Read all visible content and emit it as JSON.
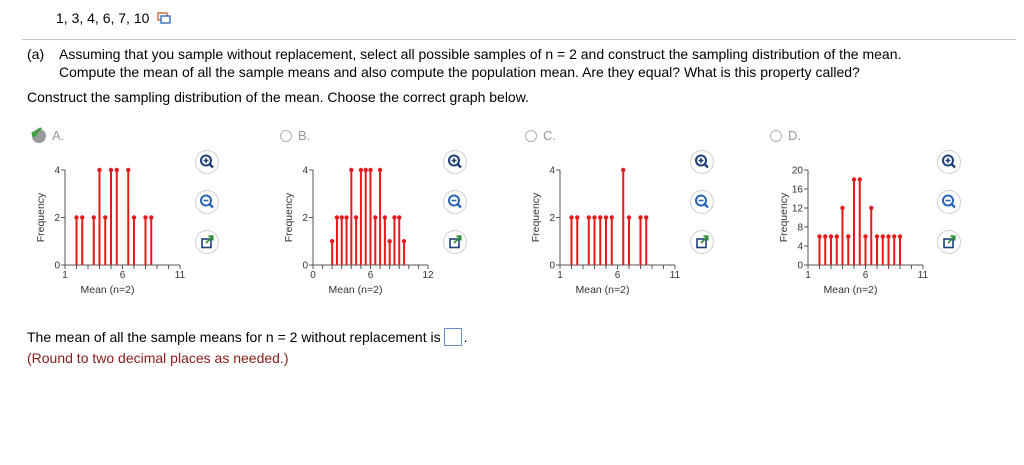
{
  "data_values": "1, 3, 4, 6, 7, 10",
  "question": {
    "part": "(a)",
    "line1": "Assuming that you sample without replacement, select all possible samples of n = 2 and construct the sampling distribution of the mean.",
    "line2": "Compute the mean of all the sample means  and also compute the population mean. Are they equal? What is this property called?"
  },
  "instruction": "Construct the sampling distribution of the mean. Choose the correct graph below.",
  "options": [
    {
      "letter": "A.",
      "selected": true
    },
    {
      "letter": "B.",
      "selected": false
    },
    {
      "letter": "C.",
      "selected": false
    },
    {
      "letter": "D.",
      "selected": false
    }
  ],
  "answer_prompt": "The mean of all the sample means for n = 2 without replacement is",
  "answer_value": "",
  "answer_end": ".",
  "round_note": "(Round to two decimal places as needed.)",
  "colors": {
    "stem": "#e8191a",
    "axis": "#555555",
    "tool_blue": "#2a63b5",
    "tool_green": "#2f8f3a"
  },
  "chart_data": [
    {
      "type": "bar",
      "option": "A",
      "ylabel": "Frequency",
      "xlabel": "Mean (n=2)",
      "xlim": [
        1,
        11
      ],
      "ylim": [
        0,
        4
      ],
      "xticks": [
        1,
        6,
        11
      ],
      "yticks": [
        0,
        2,
        4
      ],
      "x": [
        2,
        2.5,
        3.5,
        4,
        4.5,
        5,
        5.5,
        6.5,
        7,
        8,
        8.5
      ],
      "values": [
        2,
        2,
        2,
        4,
        2,
        4,
        4,
        4,
        2,
        2,
        2
      ]
    },
    {
      "type": "bar",
      "option": "B",
      "ylabel": "Frequency",
      "xlabel": "Mean (n=2)",
      "xlim": [
        0,
        12
      ],
      "ylim": [
        0,
        4
      ],
      "xticks": [
        0,
        6,
        12
      ],
      "yticks": [
        0,
        2,
        4
      ],
      "x": [
        2,
        2.5,
        3,
        3.5,
        4,
        4.5,
        5,
        5.5,
        6,
        6.5,
        7,
        7.5,
        8,
        8.5,
        9,
        9.5
      ],
      "values": [
        1,
        2,
        2,
        2,
        4,
        2,
        4,
        4,
        4,
        2,
        4,
        2,
        1,
        2,
        2,
        1
      ]
    },
    {
      "type": "bar",
      "option": "C",
      "ylabel": "Frequency",
      "xlabel": "Mean (n=2)",
      "xlim": [
        1,
        11
      ],
      "ylim": [
        0,
        4
      ],
      "xticks": [
        1,
        6,
        11
      ],
      "yticks": [
        0,
        2,
        4
      ],
      "x": [
        2,
        2.5,
        3.5,
        4,
        4.5,
        5,
        5.5,
        6.5,
        7,
        8,
        8.5
      ],
      "values": [
        2,
        2,
        2,
        2,
        2,
        2,
        2,
        4,
        2,
        2,
        2
      ]
    },
    {
      "type": "bar",
      "option": "D",
      "ylabel": "Frequency",
      "xlabel": "Mean (n=2)",
      "xlim": [
        1,
        11
      ],
      "ylim": [
        0,
        20
      ],
      "xticks": [
        1,
        6,
        11
      ],
      "yticks": [
        0,
        4,
        8,
        12,
        16,
        20
      ],
      "x": [
        2,
        2.5,
        3,
        3.5,
        4,
        4.5,
        5,
        5.5,
        6,
        6.5,
        7,
        7.5,
        8,
        8.5,
        9
      ],
      "values": [
        6,
        6,
        6,
        6,
        12,
        6,
        18,
        18,
        6,
        12,
        6,
        6,
        6,
        6,
        6
      ]
    }
  ]
}
